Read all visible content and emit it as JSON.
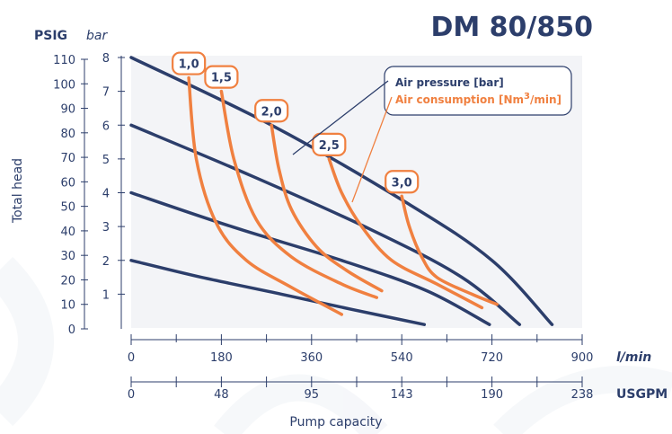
{
  "chart_data": {
    "type": "line",
    "title": "DM 80/850",
    "y_unit_left": "PSIG",
    "y_unit_right": "bar",
    "ylabel": "Total head",
    "xlabel": "Pump capacity",
    "x_unit_top": "l/min",
    "x_unit_bottom": "USGPM",
    "x_ticks_lmin": [
      0,
      180,
      360,
      540,
      720,
      900
    ],
    "x_ticks_usgpm": [
      "0",
      "48",
      "95",
      "143",
      "190",
      "238"
    ],
    "x_usgpm_positions_lmin": [
      0,
      180,
      360,
      540,
      720,
      900
    ],
    "y_ticks_bar": [
      1,
      2,
      3,
      4,
      5,
      6,
      7,
      8
    ],
    "y_ticks_psig": [
      0,
      10,
      20,
      30,
      40,
      50,
      60,
      70,
      80,
      90,
      100,
      110
    ],
    "xlim": [
      0,
      900
    ],
    "ylim": [
      0,
      8
    ],
    "legend": {
      "placement": "top-right",
      "entries": [
        {
          "label": "Air pressure [bar]",
          "color": "#2c3e6b"
        },
        {
          "label_pre": "Air consumption [Nm",
          "label_sup": "3",
          "label_post": "/min]",
          "color": "#f08040"
        }
      ]
    },
    "air_pressure_series": [
      {
        "points": [
          [
            0,
            2.0
          ],
          [
            140,
            1.5
          ],
          [
            300,
            1.0
          ],
          [
            440,
            0.55
          ],
          [
            585,
            0.1
          ]
        ]
      },
      {
        "points": [
          [
            0,
            4.0
          ],
          [
            200,
            3.0
          ],
          [
            420,
            2.0
          ],
          [
            590,
            1.1
          ],
          [
            715,
            0.1
          ]
        ]
      },
      {
        "points": [
          [
            0,
            6.0
          ],
          [
            240,
            4.5
          ],
          [
            480,
            2.9
          ],
          [
            660,
            1.5
          ],
          [
            775,
            0.1
          ]
        ]
      },
      {
        "points": [
          [
            0,
            8.0
          ],
          [
            280,
            6.0
          ],
          [
            550,
            3.7
          ],
          [
            720,
            2.0
          ],
          [
            840,
            0.1
          ]
        ]
      }
    ],
    "air_consumption_series": [
      {
        "label": "1,0",
        "points": [
          [
            115,
            7.4
          ],
          [
            130,
            5.0
          ],
          [
            170,
            3.1
          ],
          [
            230,
            2.0
          ],
          [
            320,
            1.2
          ],
          [
            420,
            0.4
          ]
        ]
      },
      {
        "label": "1,5",
        "points": [
          [
            180,
            7.0
          ],
          [
            205,
            5.0
          ],
          [
            250,
            3.2
          ],
          [
            320,
            2.1
          ],
          [
            420,
            1.3
          ],
          [
            490,
            0.9
          ]
        ]
      },
      {
        "label": "2,0",
        "points": [
          [
            280,
            6.0
          ],
          [
            295,
            4.7
          ],
          [
            320,
            3.5
          ],
          [
            370,
            2.4
          ],
          [
            430,
            1.7
          ],
          [
            500,
            1.1
          ]
        ]
      },
      {
        "label": "2,5",
        "points": [
          [
            395,
            5.0
          ],
          [
            420,
            4.0
          ],
          [
            460,
            3.0
          ],
          [
            520,
            2.0
          ],
          [
            610,
            1.3
          ],
          [
            700,
            0.6
          ]
        ]
      },
      {
        "label": "3,0",
        "points": [
          [
            540,
            3.9
          ],
          [
            555,
            3.0
          ],
          [
            580,
            2.1
          ],
          [
            610,
            1.5
          ],
          [
            680,
            1.0
          ],
          [
            730,
            0.7
          ]
        ]
      }
    ],
    "callout_labels": [
      "1,0",
      "1,5",
      "2,0",
      "2,5",
      "3,0"
    ],
    "grid": false
  }
}
